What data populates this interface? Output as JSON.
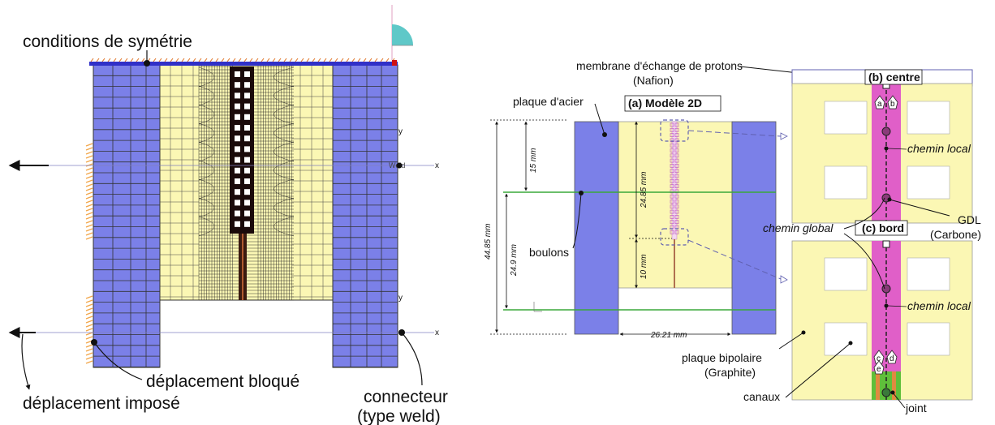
{
  "left_panel": {
    "labels": {
      "symmetry": "conditions de symétrie",
      "blocked": "déplacement bloqué",
      "imposed": "déplacement imposé",
      "connector_line1": "connecteur",
      "connector_line2": "(type weld)"
    },
    "axis_glyphs": {
      "x": "x",
      "y": "y"
    }
  },
  "right_panel": {
    "model_title": "(a) Modèle 2D",
    "membrane_line1": "membrane d'échange de protons",
    "membrane_line2": "(Nafion)",
    "steel_plate": "plaque d'acier",
    "bolts": "boulons",
    "bipolar_line1": "plaque bipolaire",
    "bipolar_line2": "(Graphite)",
    "channels": "canaux",
    "gasket": "joint",
    "gdl_line1": "GDL",
    "gdl_line2": "(Carbone)",
    "global_path": "chemin global",
    "local_path_b": "chemin local",
    "local_path_c": "chemin local",
    "center_title": "(b) centre",
    "edge_title": "(c) bord",
    "dimensions": {
      "total_height": "44.85 mm",
      "lower_height": "24.9 mm",
      "top_offset": "15 mm",
      "middle_span": "24.85 mm",
      "bottom_offset": "10 mm",
      "width": "26.21 mm"
    },
    "points": {
      "a": "a",
      "b": "b",
      "c": "c",
      "d": "d",
      "e": "e"
    }
  },
  "colors": {
    "steel": "#7b80e8",
    "bipolar": "#fbf7b4",
    "nafion": "#e05fc8",
    "mesh": "#2a2a2a",
    "bolt_line": "#3aa83a",
    "constraint": "#f2a64a",
    "symmetry_bar": "#3030c8"
  }
}
